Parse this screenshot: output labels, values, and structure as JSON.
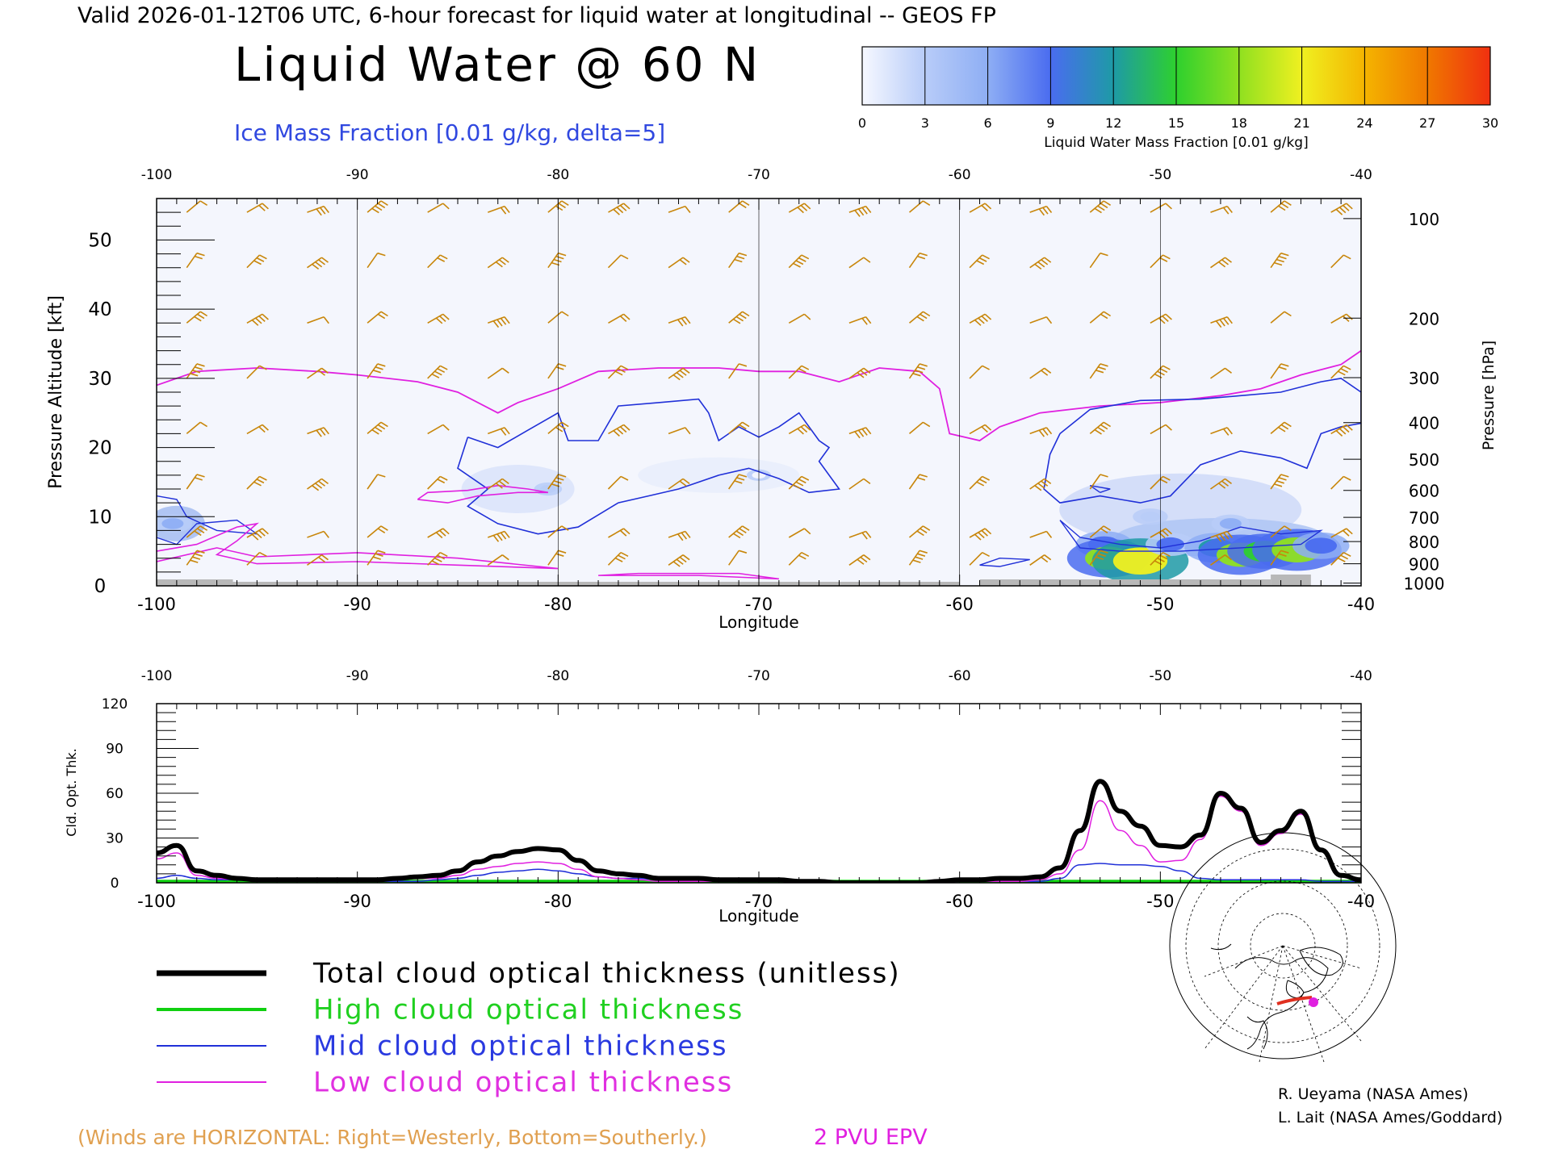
{
  "header": {
    "valid_line": "Valid 2026-01-12T06 UTC, 6-hour forecast for liquid water at longitudinal -- GEOS FP",
    "title": "Liquid Water @ 60 N",
    "subtitle": "Ice Mass Fraction [0.01 g/kg, delta=5]"
  },
  "colorbar": {
    "ticks": [
      "0",
      "3",
      "6",
      "9",
      "12",
      "15",
      "18",
      "21",
      "24",
      "27",
      "30"
    ],
    "label": "Liquid Water Mass Fraction [0.01 g/kg]",
    "colors": [
      "#f6f8ff",
      "#b8ccf8",
      "#8eaef4",
      "#4a6cf0",
      "#1e9aa6",
      "#2ed02e",
      "#8fe020",
      "#f0f020",
      "#f4b400",
      "#f07800",
      "#f03010"
    ]
  },
  "colors": {
    "wind_barb": "#c8860a",
    "ice_contour": "#2030d8",
    "pv_contour": "#e020e0",
    "terrain": "#b8b8b8",
    "total": "#000000",
    "high": "#10d010",
    "mid": "#2030d8",
    "low": "#e020e0"
  },
  "chart_data": [
    {
      "type": "heatmap",
      "xlabel": "Longitude",
      "ylabel": "Pressure Altitude [kft]",
      "ylabel_right": "Pressure [hPa]",
      "xlim": [
        -100,
        -40
      ],
      "ylim": [
        0,
        56
      ],
      "x_ticks": [
        "-100",
        "-90",
        "-80",
        "-70",
        "-60",
        "-50",
        "-40"
      ],
      "y_ticks": [
        "0",
        "10",
        "20",
        "30",
        "40",
        "50"
      ],
      "pressure_ticks": [
        {
          "label": "100",
          "alt": 53.1
        },
        {
          "label": "200",
          "alt": 38.7
        },
        {
          "label": "300",
          "alt": 30.1
        },
        {
          "label": "400",
          "alt": 23.6
        },
        {
          "label": "500",
          "alt": 18.3
        },
        {
          "label": "600",
          "alt": 13.8
        },
        {
          "label": "700",
          "alt": 9.9
        },
        {
          "label": "800",
          "alt": 6.4
        },
        {
          "label": "900",
          "alt": 3.2
        },
        {
          "label": "1000",
          "alt": 0.4
        }
      ],
      "liquid_water_blobs": [
        {
          "lon": -52.8,
          "alt": 6.0,
          "value": 10
        },
        {
          "lon": -52.6,
          "alt": 4.0,
          "value": 17
        },
        {
          "lon": -51.0,
          "alt": 3.6,
          "value": 21
        },
        {
          "lon": -49.5,
          "alt": 6.0,
          "value": 8
        },
        {
          "lon": -47.2,
          "alt": 5.5,
          "value": 12
        },
        {
          "lon": -46.0,
          "alt": 4.5,
          "value": 18
        },
        {
          "lon": -44.8,
          "alt": 5.0,
          "value": 15
        },
        {
          "lon": -43.2,
          "alt": 5.2,
          "value": 19
        },
        {
          "lon": -42.0,
          "alt": 5.8,
          "value": 10
        },
        {
          "lon": -50.5,
          "alt": 10.0,
          "value": 4
        },
        {
          "lon": -46.5,
          "alt": 9.0,
          "value": 5
        },
        {
          "lon": -99.2,
          "alt": 9.0,
          "value": 5
        },
        {
          "lon": -80.5,
          "alt": 14.0,
          "value": 2
        },
        {
          "lon": -70,
          "alt": 16,
          "value": 1
        }
      ],
      "pv_2pvu_line": [
        [
          -100,
          29
        ],
        [
          -98,
          31
        ],
        [
          -95,
          31.5
        ],
        [
          -92,
          31
        ],
        [
          -90,
          30.5
        ],
        [
          -87,
          29.5
        ],
        [
          -85,
          28
        ],
        [
          -83,
          25
        ],
        [
          -82,
          26.5
        ],
        [
          -80,
          28.5
        ],
        [
          -78,
          31
        ],
        [
          -75,
          31.5
        ],
        [
          -72,
          31.5
        ],
        [
          -70,
          31
        ],
        [
          -68,
          31
        ],
        [
          -66,
          29.5
        ],
        [
          -64,
          31.5
        ],
        [
          -62,
          31
        ],
        [
          -61,
          28.5
        ],
        [
          -60.5,
          22
        ],
        [
          -59,
          21
        ],
        [
          -58,
          23
        ],
        [
          -56,
          25
        ],
        [
          -53,
          26
        ],
        [
          -50,
          26.5
        ],
        [
          -47,
          27.5
        ],
        [
          -45,
          28.5
        ],
        [
          -43,
          30.5
        ],
        [
          -41,
          32
        ],
        [
          -40,
          34
        ]
      ],
      "ice_contour_line": [
        [
          -84.5,
          21.5
        ],
        [
          -83,
          20
        ],
        [
          -81.5,
          22.5
        ],
        [
          -80,
          25
        ],
        [
          -79.5,
          21
        ],
        [
          -78,
          21
        ],
        [
          -77,
          26
        ],
        [
          -75,
          26.5
        ],
        [
          -73,
          27
        ],
        [
          -72.5,
          25
        ],
        [
          -72,
          21
        ],
        [
          -71,
          23
        ],
        [
          -70,
          21.5
        ],
        [
          -69,
          23
        ],
        [
          -68,
          25
        ],
        [
          -67,
          21
        ],
        [
          -66.5,
          20
        ],
        [
          -67,
          18
        ],
        [
          -66,
          14
        ],
        [
          -67.5,
          13.5
        ],
        [
          -69,
          15.5
        ],
        [
          -70.5,
          17
        ],
        [
          -72,
          16
        ],
        [
          -74,
          14
        ],
        [
          -75.5,
          13
        ],
        [
          -77,
          12
        ],
        [
          -79,
          8.5
        ],
        [
          -81,
          7.5
        ],
        [
          -83,
          9
        ],
        [
          -84.5,
          11.5
        ],
        [
          -83.5,
          14
        ],
        [
          -85,
          17
        ],
        [
          -84.5,
          21.5
        ]
      ],
      "ice_contour_right": [
        [
          -55,
          22
        ],
        [
          -53.5,
          25.5
        ],
        [
          -51,
          26.8
        ],
        [
          -48,
          27
        ],
        [
          -46,
          27.5
        ],
        [
          -44,
          28
        ],
        [
          -42,
          29.5
        ],
        [
          -41,
          30
        ],
        [
          -40,
          28
        ],
        [
          -40,
          23.5
        ],
        [
          -41,
          23
        ],
        [
          -42,
          22
        ],
        [
          -42.7,
          17
        ],
        [
          -44,
          18.5
        ],
        [
          -46,
          19.5
        ],
        [
          -48,
          17.5
        ],
        [
          -49.5,
          13
        ],
        [
          -51,
          12
        ],
        [
          -53,
          13
        ],
        [
          -55,
          12
        ],
        [
          -55.8,
          14
        ],
        [
          -55.5,
          19
        ],
        [
          -55,
          22
        ]
      ],
      "wind_barb_rows_alt": [
        54,
        46,
        38,
        30,
        22,
        14,
        7,
        3
      ],
      "wind_barb_cols_lon": [
        -98.5,
        -95.5,
        -92.5,
        -89.5,
        -86.5,
        -83.5,
        -80.5,
        -77.5,
        -74.5,
        -71.5,
        -68.5,
        -65.5,
        -62.5,
        -59.5,
        -56.5,
        -53.5,
        -50.5,
        -47.5,
        -44.5,
        -41.5
      ]
    },
    {
      "type": "line",
      "xlabel": "Longitude",
      "ylabel": "Cld. Opt. Thk.",
      "xlim": [
        -100,
        -40
      ],
      "ylim": [
        0,
        120
      ],
      "x_ticks": [
        "-100",
        "-90",
        "-80",
        "-70",
        "-60",
        "-50",
        "-40"
      ],
      "y_ticks": [
        "0",
        "30",
        "60",
        "90",
        "120"
      ],
      "x": [
        -100,
        -99,
        -98,
        -97,
        -96,
        -95,
        -94,
        -93,
        -92,
        -91,
        -90,
        -89,
        -88,
        -87,
        -86,
        -85,
        -84,
        -83,
        -82,
        -81,
        -80,
        -79,
        -78,
        -77,
        -76,
        -75,
        -74,
        -73,
        -72,
        -71,
        -70,
        -69,
        -68,
        -67,
        -66,
        -65,
        -64,
        -63,
        -62,
        -61,
        -60,
        -59,
        -58,
        -57,
        -56,
        -55,
        -54,
        -53,
        -52,
        -51,
        -50,
        -49,
        -48,
        -47,
        -46,
        -45,
        -44,
        -43,
        -42,
        -41,
        -40
      ],
      "series": [
        {
          "name": "Total cloud optical thickness (unitless)",
          "key": "total",
          "width": 6,
          "values": [
            20,
            25,
            8,
            5,
            3,
            2,
            2,
            2,
            2,
            2,
            2,
            2,
            3,
            4,
            5,
            8,
            14,
            18,
            21,
            23,
            22,
            15,
            8,
            6,
            5,
            3,
            3,
            3,
            2,
            2,
            2,
            2,
            1,
            1,
            0,
            0,
            0,
            0,
            0,
            1,
            2,
            2,
            3,
            3,
            4,
            10,
            35,
            68,
            48,
            38,
            25,
            24,
            32,
            60,
            50,
            27,
            35,
            48,
            22,
            5,
            2
          ]
        },
        {
          "name": "High cloud optical thickness",
          "key": "high",
          "width": 4,
          "values": [
            1,
            1,
            1,
            1,
            1,
            1,
            1,
            1,
            1,
            1,
            1,
            1,
            1,
            1,
            1,
            1,
            1,
            1,
            1,
            1,
            1,
            1,
            1,
            1,
            1,
            1,
            1,
            1,
            1,
            1,
            1,
            1,
            1,
            1,
            1,
            1,
            1,
            1,
            1,
            1,
            1,
            1,
            1,
            1,
            1,
            1,
            1,
            1,
            1,
            1,
            1,
            1,
            1,
            1,
            1,
            1,
            1,
            1,
            1,
            1,
            1
          ]
        },
        {
          "name": "Mid cloud optical thickness",
          "key": "mid",
          "width": 1.5,
          "values": [
            3,
            5,
            3,
            2,
            2,
            1,
            1,
            1,
            1,
            1,
            1,
            1,
            1,
            1,
            2,
            3,
            5,
            7,
            8,
            9,
            8,
            6,
            4,
            3,
            3,
            2,
            2,
            2,
            2,
            2,
            2,
            2,
            1,
            1,
            1,
            0,
            0,
            0,
            0,
            0,
            1,
            1,
            1,
            1,
            1,
            3,
            12,
            13,
            12,
            12,
            11,
            8,
            3,
            2,
            2,
            2,
            2,
            2,
            1,
            1,
            1
          ]
        },
        {
          "name": "Low cloud optical thickness",
          "key": "low",
          "width": 1.5,
          "values": [
            16,
            20,
            5,
            3,
            2,
            1,
            1,
            1,
            1,
            1,
            1,
            1,
            2,
            3,
            3,
            5,
            9,
            11,
            13,
            14,
            13,
            9,
            4,
            3,
            2,
            1,
            1,
            1,
            1,
            1,
            1,
            1,
            1,
            1,
            0,
            0,
            0,
            0,
            0,
            0,
            1,
            1,
            1,
            1,
            2,
            6,
            22,
            55,
            35,
            25,
            14,
            15,
            29,
            58,
            48,
            25,
            33,
            46,
            21,
            4,
            1
          ]
        }
      ]
    }
  ],
  "legend": {
    "total": "Total cloud optical thickness (unitless)",
    "high": "High cloud optical thickness",
    "mid": "Mid cloud optical thickness",
    "low": "Low cloud optical thickness"
  },
  "credits": {
    "line1": "R. Ueyama (NASA Ames)",
    "line2": "L. Lait (NASA Ames/Goddard)"
  },
  "footer": {
    "winds_note": "(Winds are HORIZONTAL: Right=Westerly, Bottom=Southerly.)",
    "pv_label": "2 PVU EPV"
  }
}
